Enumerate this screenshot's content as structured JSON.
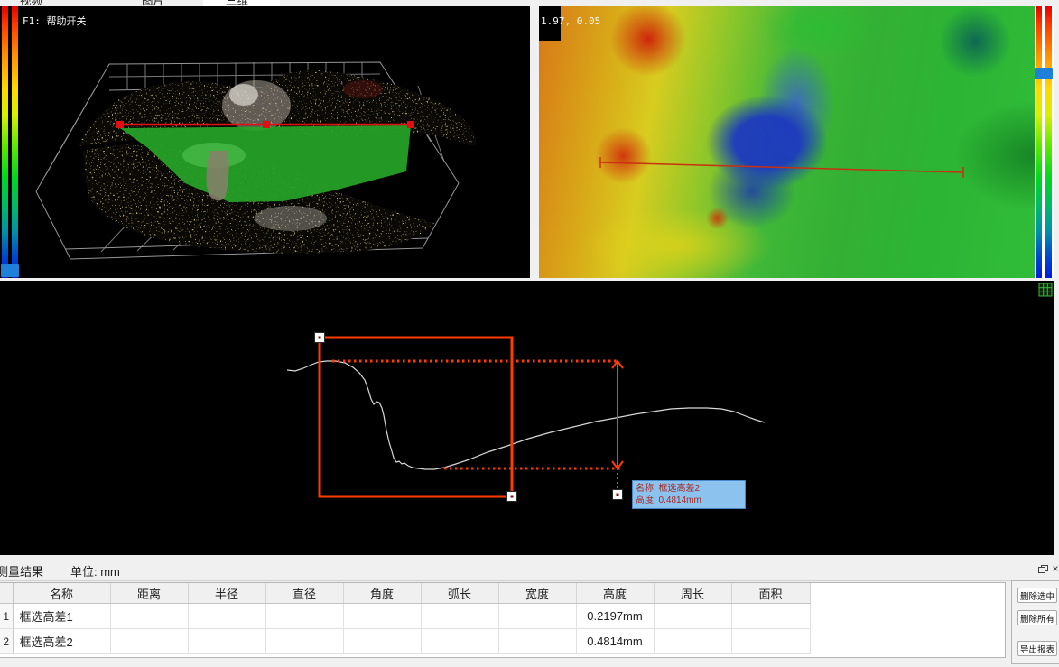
{
  "tabs": {
    "items": [
      {
        "label": "视频",
        "active": false
      },
      {
        "label": "图片",
        "active": false
      },
      {
        "label": "三维",
        "active": true
      }
    ]
  },
  "view3d": {
    "help_text": "F1: 帮助开关"
  },
  "heatmap": {
    "coord_label": "1.97, 0.05"
  },
  "profile": {
    "tooltip": {
      "name_line": "名称: 框选高差2",
      "value_line": "高度: 0.4814mm"
    },
    "curve_points": [
      [
        318,
        99
      ],
      [
        327,
        100
      ],
      [
        336,
        97
      ],
      [
        345,
        93
      ],
      [
        353,
        90
      ],
      [
        362,
        89
      ],
      [
        372,
        89
      ],
      [
        382,
        91
      ],
      [
        391,
        96
      ],
      [
        398,
        102
      ],
      [
        404,
        110
      ],
      [
        408,
        121
      ],
      [
        411,
        131
      ],
      [
        414,
        137
      ],
      [
        417,
        134
      ],
      [
        420,
        135
      ],
      [
        423,
        141
      ],
      [
        425,
        149
      ],
      [
        428,
        166
      ],
      [
        431,
        179
      ],
      [
        434,
        189
      ],
      [
        436,
        196
      ],
      [
        439,
        201
      ],
      [
        442,
        200
      ],
      [
        445,
        203
      ],
      [
        448,
        202
      ],
      [
        452,
        205
      ],
      [
        457,
        207
      ],
      [
        463,
        208
      ],
      [
        471,
        209
      ],
      [
        481,
        209
      ],
      [
        492,
        207
      ],
      [
        505,
        203
      ],
      [
        520,
        198
      ],
      [
        540,
        190
      ],
      [
        562,
        183
      ],
      [
        585,
        175
      ],
      [
        610,
        168
      ],
      [
        635,
        162
      ],
      [
        660,
        156
      ],
      [
        682,
        152
      ],
      [
        703,
        148
      ],
      [
        723,
        145
      ],
      [
        743,
        142
      ],
      [
        763,
        141
      ],
      [
        783,
        141
      ],
      [
        799,
        142
      ],
      [
        813,
        145
      ],
      [
        826,
        150
      ],
      [
        837,
        154
      ],
      [
        847,
        157
      ]
    ]
  },
  "results": {
    "title": "测量结果",
    "unit_label": "单位: mm",
    "close_glyph": "×",
    "columns": [
      "名称",
      "距离",
      "半径",
      "直径",
      "角度",
      "弧长",
      "宽度",
      "高度",
      "周长",
      "面积"
    ],
    "rows": [
      {
        "index": "1",
        "cells": [
          "框选高差1",
          "",
          "",
          "",
          "",
          "",
          "",
          "0.2197mm",
          "",
          ""
        ]
      },
      {
        "index": "2",
        "cells": [
          "框选高差2",
          "",
          "",
          "",
          "",
          "",
          "",
          "0.4814mm",
          "",
          ""
        ]
      }
    ],
    "buttons": [
      {
        "label": "删除选中"
      },
      {
        "label": "删除所有"
      },
      {
        "label": "导出报表"
      }
    ]
  },
  "colors": {
    "measure_accent": "#ff3c00",
    "marker_red": "#e01010",
    "section_green": "#27a527",
    "tooltip_bg": "#8cc2ee",
    "tooltip_text": "#a82820",
    "slider_handle": "#1e80d8"
  }
}
